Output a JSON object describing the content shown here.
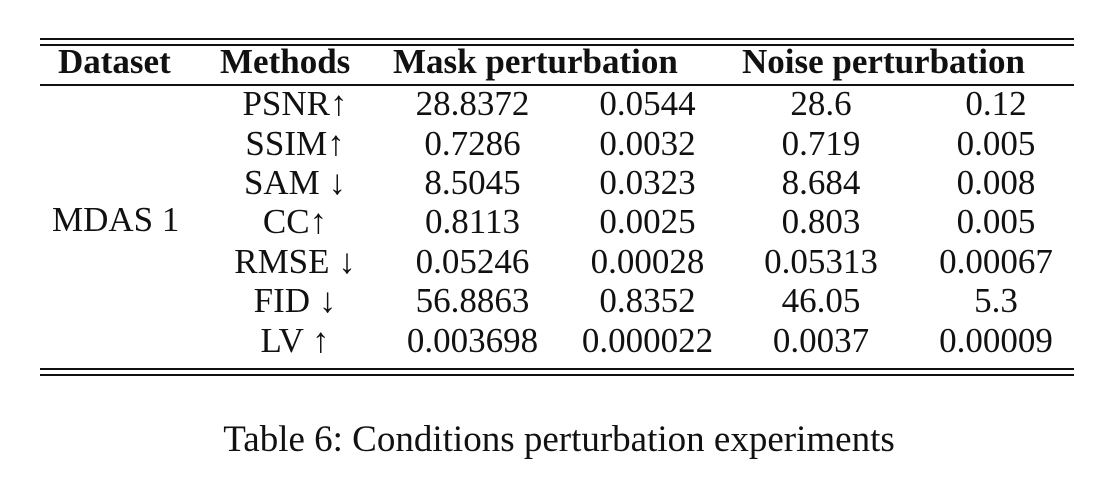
{
  "table": {
    "headers": {
      "dataset": "Dataset",
      "methods": "Methods",
      "mask": "Mask perturbation",
      "noise": "Noise perturbation"
    },
    "dataset_name": "MDAS 1",
    "rows": [
      {
        "method": "PSNR↑",
        "mask_value": "28.8372",
        "mask_std": "0.0544",
        "noise_value": "28.6",
        "noise_std": "0.12"
      },
      {
        "method": "SSIM↑",
        "mask_value": "0.7286",
        "mask_std": "0.0032",
        "noise_value": "0.719",
        "noise_std": "0.005"
      },
      {
        "method": "SAM ↓",
        "mask_value": "8.5045",
        "mask_std": "0.0323",
        "noise_value": "8.684",
        "noise_std": "0.008"
      },
      {
        "method": "CC↑",
        "mask_value": "0.8113",
        "mask_std": "0.0025",
        "noise_value": "0.803",
        "noise_std": "0.005"
      },
      {
        "method": "RMSE ↓",
        "mask_value": "0.05246",
        "mask_std": "0.00028",
        "noise_value": "0.05313",
        "noise_std": "0.00067"
      },
      {
        "method": "FID ↓",
        "mask_value": "56.8863",
        "mask_std": "0.8352",
        "noise_value": "46.05",
        "noise_std": "5.3"
      },
      {
        "method": "LV ↑",
        "mask_value": "0.003698",
        "mask_std": "0.000022",
        "noise_value": "0.0037",
        "noise_std": "0.00009"
      }
    ]
  },
  "caption": "Table 6: Conditions perturbation experiments"
}
